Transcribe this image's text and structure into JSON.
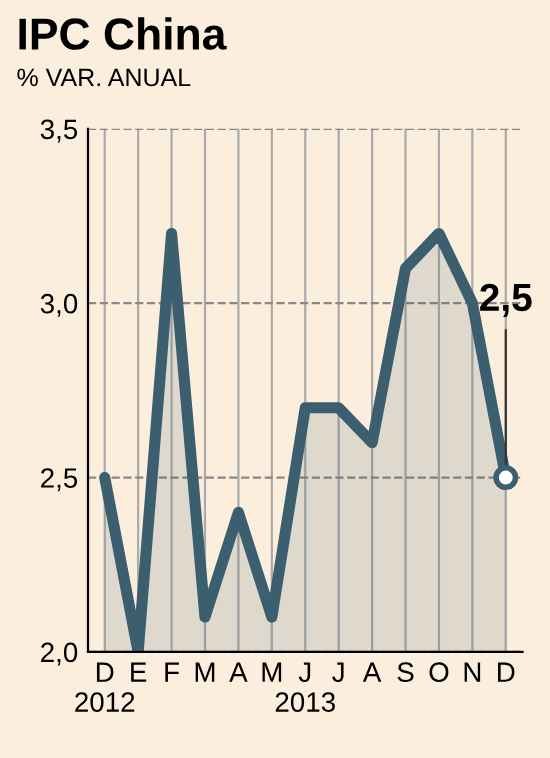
{
  "chart_data": {
    "type": "area",
    "title": "IPC China",
    "subtitle": "% VAR. ANUAL",
    "categories": [
      "D\n2012",
      "E",
      "F",
      "M",
      "A",
      "M",
      "J\n2013",
      "J",
      "A",
      "S",
      "O",
      "N",
      "D"
    ],
    "series": [
      {
        "color": "#3b5f6f",
        "values": [
          2.5,
          2.0,
          3.2,
          2.1,
          2.4,
          2.1,
          2.7,
          2.7,
          2.6,
          3.1,
          3.2,
          3.0,
          2.5
        ],
        "value_labels": [
          null,
          null,
          null,
          null,
          null,
          null,
          null,
          null,
          null,
          null,
          null,
          null,
          "2,5"
        ]
      }
    ],
    "ylim": [
      2.0,
      3.5
    ],
    "yticks": [
      {
        "value": 2.0,
        "label": "2,0"
      },
      {
        "value": 2.5,
        "label": "2,5"
      },
      {
        "value": 3.0,
        "label": "3,0"
      },
      {
        "value": 3.5,
        "label": "3,5"
      }
    ],
    "grid": true
  }
}
